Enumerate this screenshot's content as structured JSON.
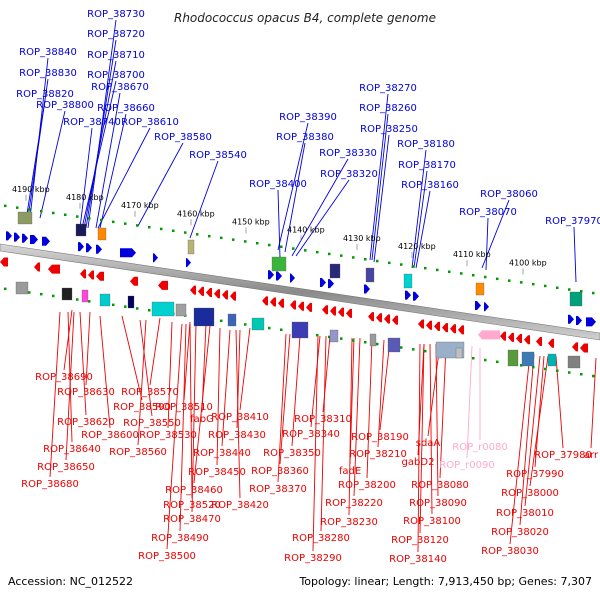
{
  "title": "Rhodococcus opacus B4, complete genome",
  "footer": {
    "accession": "Accession: NC_012522",
    "stats": "Topology: linear; Length: 7,913,450 bp; Genes: 7,307"
  },
  "colors": {
    "forward": "#0000dd",
    "reverse": "#ee0000",
    "rna": "#ffaacc",
    "track_dots": "#009900",
    "backbone": "#9a9a9a"
  },
  "kbp_ticks": [
    "4190 kbp",
    "4180 kbp",
    "4170 kbp",
    "4160 kbp",
    "4150 kbp",
    "4140 kbp",
    "4130 kbp",
    "4120 kbp",
    "4110 kbp",
    "4100 kbp"
  ],
  "top_labels": [
    "ROP_38730",
    "ROP_38720",
    "ROP_38710",
    "ROP_38700",
    "ROP_38840",
    "ROP_38830",
    "ROP_38820",
    "ROP_38800",
    "ROP_38670",
    "ROP_38660",
    "ROP_38740",
    "ROP_38610",
    "ROP_38580",
    "ROP_38540",
    "ROP_38390",
    "ROP_38380",
    "ROP_38400",
    "ROP_38330",
    "ROP_38320",
    "ROP_38270",
    "ROP_38260",
    "ROP_38250",
    "ROP_38180",
    "ROP_38170",
    "ROP_38160",
    "ROP_38060",
    "ROP_38070",
    "ROP_37970"
  ],
  "bottom_labels": [
    "ROP_38690",
    "ROP_38630",
    "ROP_38570",
    "ROP_38620",
    "ROP_38590",
    "ROP_38510",
    "ROP_38550",
    "fabG",
    "ROP_38410",
    "ROP_38600",
    "ROP_38530",
    "ROP_38430",
    "ROP_38310",
    "ROP_38640",
    "ROP_38560",
    "ROP_38440",
    "ROP_38340",
    "ROP_38190",
    "sdaA",
    "ROP_r0080",
    "ROP_38650",
    "ROP_38350",
    "ROP_38210",
    "gabD2",
    "ROP_r0090",
    "ROP_37980",
    "arr",
    "ROP_38680",
    "ROP_38450",
    "ROP_38360",
    "fadE",
    "ROP_37990",
    "ROP_38460",
    "ROP_38370",
    "ROP_38200",
    "ROP_38080",
    "ROP_38000",
    "ROP_38520",
    "ROP_38420",
    "ROP_38220",
    "ROP_38090",
    "ROP_38470",
    "ROP_38230",
    "ROP_38100",
    "ROP_38010",
    "ROP_38490",
    "ROP_38280",
    "ROP_38120",
    "ROP_38020",
    "ROP_38500",
    "ROP_38290",
    "ROP_38140",
    "ROP_38030"
  ]
}
